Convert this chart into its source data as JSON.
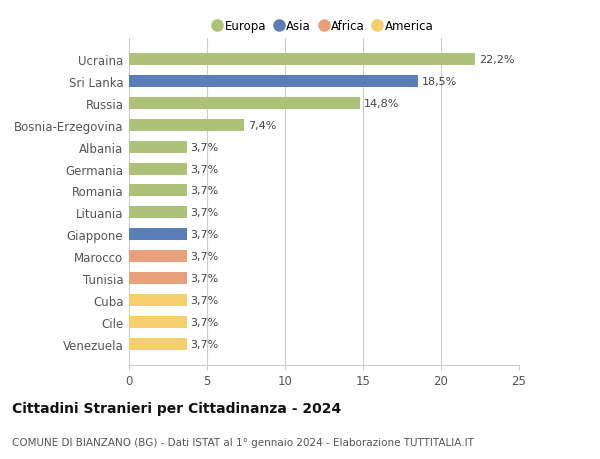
{
  "countries": [
    "Venezuela",
    "Cile",
    "Cuba",
    "Tunisia",
    "Marocco",
    "Giappone",
    "Lituania",
    "Romania",
    "Germania",
    "Albania",
    "Bosnia-Erzegovina",
    "Russia",
    "Sri Lanka",
    "Ucraina"
  ],
  "values": [
    3.7,
    3.7,
    3.7,
    3.7,
    3.7,
    3.7,
    3.7,
    3.7,
    3.7,
    3.7,
    7.4,
    14.8,
    18.5,
    22.2
  ],
  "labels": [
    "3,7%",
    "3,7%",
    "3,7%",
    "3,7%",
    "3,7%",
    "3,7%",
    "3,7%",
    "3,7%",
    "3,7%",
    "3,7%",
    "7,4%",
    "14,8%",
    "18,5%",
    "22,2%"
  ],
  "continents": [
    "America",
    "America",
    "America",
    "Africa",
    "Africa",
    "Asia",
    "Europa",
    "Europa",
    "Europa",
    "Europa",
    "Europa",
    "Europa",
    "Asia",
    "Europa"
  ],
  "colors": {
    "Europa": "#adc178",
    "Asia": "#5b7db8",
    "Africa": "#e8a07a",
    "America": "#f5ce6e"
  },
  "legend_order": [
    "Europa",
    "Asia",
    "Africa",
    "America"
  ],
  "title": "Cittadini Stranieri per Cittadinanza - 2024",
  "subtitle": "COMUNE DI BIANZANO (BG) - Dati ISTAT al 1° gennaio 2024 - Elaborazione TUTTITALIA.IT",
  "xlim": [
    0,
    25
  ],
  "xticks": [
    0,
    5,
    10,
    15,
    20,
    25
  ],
  "background_color": "#ffffff",
  "grid_color": "#cccccc",
  "bar_height": 0.55,
  "label_fontsize": 8,
  "tick_fontsize": 8.5,
  "legend_fontsize": 8.5,
  "title_fontsize": 10,
  "subtitle_fontsize": 7.5
}
